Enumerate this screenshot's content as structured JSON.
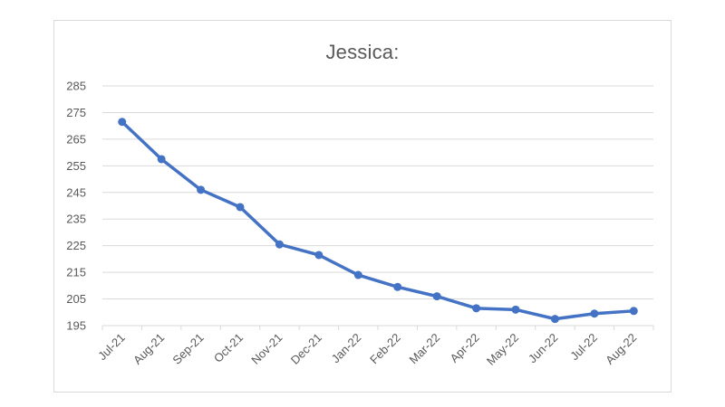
{
  "chart_data": {
    "type": "line",
    "title": "Jessica:",
    "xlabel": "",
    "ylabel": "",
    "categories": [
      "Jul-21",
      "Aug-21",
      "Sep-21",
      "Oct-21",
      "Nov-21",
      "Dec-21",
      "Jan-22",
      "Feb-22",
      "Mar-22",
      "Apr-22",
      "May-22",
      "Jun-22",
      "Jul-22",
      "Aug-22"
    ],
    "series": [
      {
        "values": [
          271.5,
          257.5,
          246,
          239.5,
          225.5,
          221.5,
          214,
          209.5,
          206,
          201.5,
          201,
          197.5,
          199.5,
          200.5
        ]
      }
    ],
    "ylim": [
      195,
      285
    ],
    "yticks": [
      195,
      205,
      215,
      225,
      235,
      245,
      255,
      265,
      275,
      285
    ],
    "grid": true,
    "legend": "none",
    "colors": {
      "line": "#4472C4",
      "grid": "#d9d9d9",
      "text": "#595959",
      "frame": "#d9d9d9"
    }
  }
}
